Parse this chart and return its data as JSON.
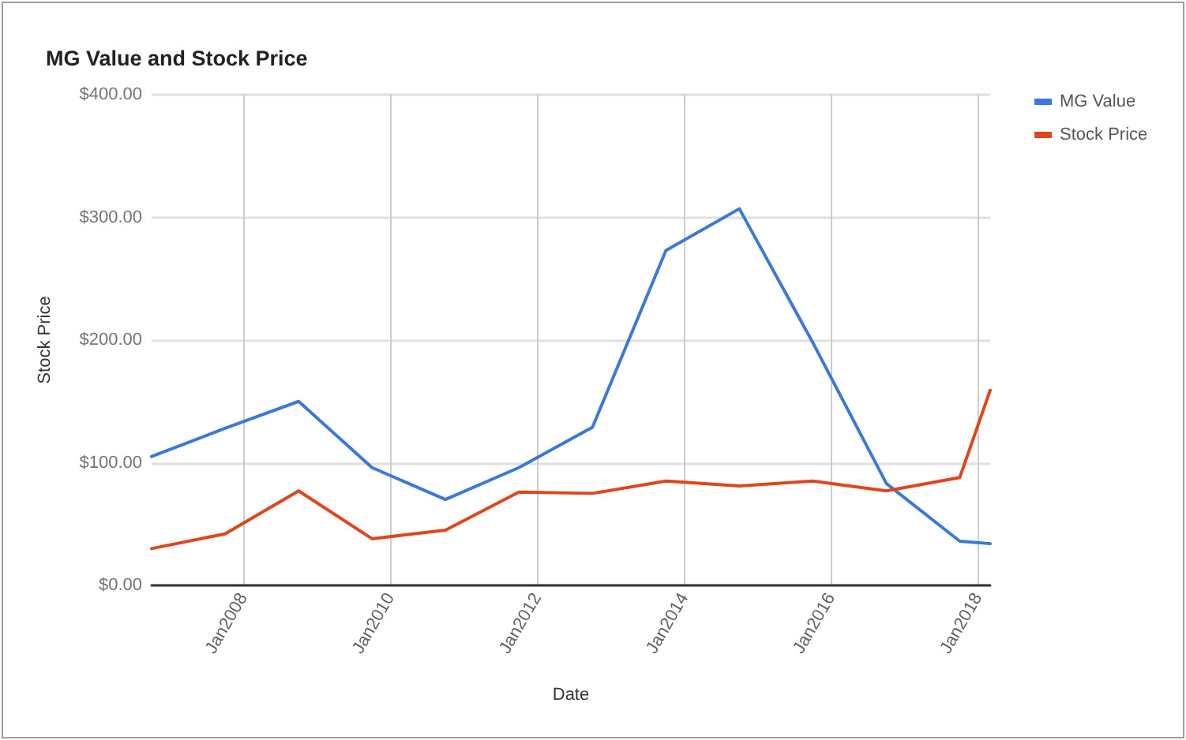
{
  "chart_data": {
    "type": "line",
    "title": "MG Value and Stock Price",
    "xlabel": "Date",
    "ylabel": "Stock Price",
    "x": [
      "2006-10",
      "2007-10",
      "2008-10",
      "2009-10",
      "2010-10",
      "2011-10",
      "2012-10",
      "2013-10",
      "2014-10",
      "2015-10",
      "2016-10",
      "2017-10",
      "2018-03"
    ],
    "series": [
      {
        "name": "MG Value",
        "color": "#3c78d8",
        "values": [
          105,
          128,
          150,
          96,
          70,
          96,
          129,
          273,
          307,
          198,
          83,
          36,
          34
        ]
      },
      {
        "name": "Stock Price",
        "color": "#e0461e",
        "values": [
          30,
          42,
          77,
          38,
          45,
          76,
          75,
          85,
          81,
          85,
          77,
          88,
          159
        ]
      }
    ],
    "xlim": [
      "2006-10",
      "2018-03"
    ],
    "xticks": [
      {
        "value": "2008-01",
        "label": "Jan2008"
      },
      {
        "value": "2010-01",
        "label": "Jan2010"
      },
      {
        "value": "2012-01",
        "label": "Jan2012"
      },
      {
        "value": "2014-01",
        "label": "Jan2014"
      },
      {
        "value": "2016-01",
        "label": "Jan2016"
      },
      {
        "value": "2018-01",
        "label": "Jan2018"
      }
    ],
    "ylim": [
      0,
      400
    ],
    "yticks": [
      {
        "value": 0,
        "label": "$0.00"
      },
      {
        "value": 100,
        "label": "$100.00"
      },
      {
        "value": 200,
        "label": "$200.00"
      },
      {
        "value": 300,
        "label": "$300.00"
      },
      {
        "value": 400,
        "label": "$400.00"
      }
    ],
    "grid": true,
    "legend": "top right",
    "marker": "none",
    "line_style": "solid"
  }
}
